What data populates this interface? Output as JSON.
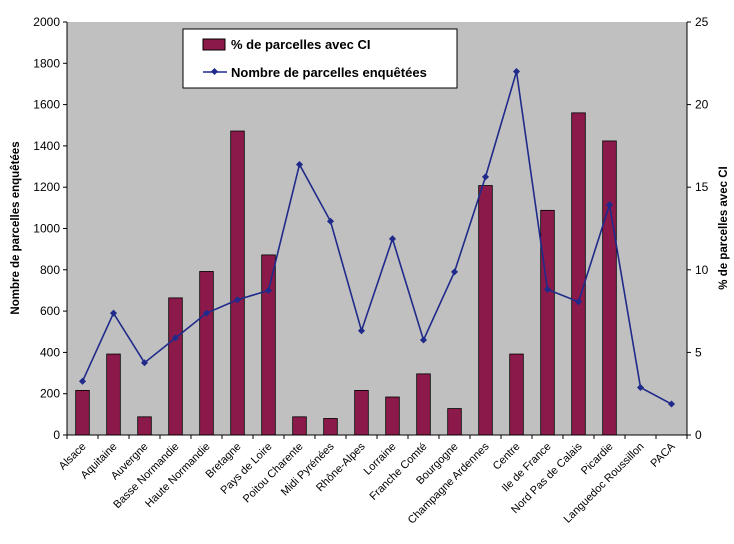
{
  "chart_data": {
    "type": "bar",
    "title": "",
    "xlabel": "",
    "ylabel": "Nombre de parcelles enquêtées",
    "y2label": "% de parcelles avec CI",
    "ylim": [
      0,
      2000
    ],
    "y2lim": [
      0,
      25
    ],
    "y_ticks": [
      "0",
      "200",
      "400",
      "600",
      "800",
      "1000",
      "1200",
      "1400",
      "1600",
      "1800",
      "2000"
    ],
    "y2_ticks": [
      "0",
      "5",
      "10",
      "15",
      "20",
      "25"
    ],
    "grid": false,
    "legend_position": "top-center",
    "categories": [
      "Alsace",
      "Aquitaine",
      "Auvergne",
      "Basse Normandie",
      "Haute Normandie",
      "Bretagne",
      "Pays de Loire",
      "Poitou Charente",
      "Midi Pyrénées",
      "Rhône-Alpes",
      "Lorraine",
      "Franche Comté",
      "Bourgogne",
      "Champagne Ardennes",
      "Centre",
      "Ile de France",
      "Nord Pas de Calais",
      "Picardie",
      "Languedoc Roussillon",
      "PACA"
    ],
    "series": [
      {
        "name": "% de parcelles avec CI",
        "type": "bar",
        "axis": "right",
        "color": "#8b1a4a",
        "values": [
          2.7,
          4.9,
          1.1,
          8.3,
          9.9,
          18.4,
          10.9,
          1.1,
          1.0,
          2.7,
          2.3,
          3.7,
          1.6,
          15.1,
          4.9,
          13.6,
          19.5,
          17.8,
          0,
          0
        ]
      },
      {
        "name": "Nombre de parcelles enquêtées",
        "type": "line",
        "axis": "left",
        "color": "#1f2a8a",
        "values": [
          260,
          590,
          350,
          470,
          590,
          655,
          700,
          1310,
          1035,
          505,
          950,
          460,
          790,
          1250,
          1760,
          705,
          645,
          1115,
          230,
          150
        ]
      }
    ]
  },
  "colors": {
    "plot_background": "#c0c0c0",
    "bar": "#8b1a4a",
    "line": "#1f2a8a"
  }
}
